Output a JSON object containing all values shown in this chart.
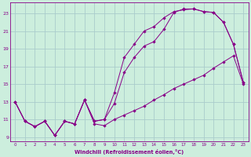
{
  "xlabel": "Windchill (Refroidissement éolien,°C)",
  "bg_color": "#cceedd",
  "grid_color": "#aacccc",
  "line_color": "#880088",
  "xlim": [
    -0.5,
    23.5
  ],
  "ylim": [
    8.5,
    24.2
  ],
  "xticks": [
    0,
    1,
    2,
    3,
    4,
    5,
    6,
    7,
    8,
    9,
    10,
    11,
    12,
    13,
    14,
    15,
    16,
    17,
    18,
    19,
    20,
    21,
    22,
    23
  ],
  "yticks": [
    9,
    11,
    13,
    15,
    17,
    19,
    21,
    23
  ],
  "line1_x": [
    0,
    1,
    2,
    3,
    4,
    5,
    6,
    7,
    8,
    9,
    10,
    11,
    12,
    13,
    14,
    15,
    16,
    17,
    18,
    19,
    20,
    21,
    22,
    23
  ],
  "line1_y": [
    13.0,
    10.8,
    10.2,
    10.8,
    9.2,
    10.8,
    10.5,
    13.2,
    10.5,
    10.3,
    11.0,
    11.5,
    12.0,
    12.5,
    13.2,
    13.8,
    14.5,
    15.0,
    15.5,
    16.0,
    16.8,
    17.5,
    18.2,
    15.0
  ],
  "line2_x": [
    0,
    1,
    2,
    3,
    4,
    5,
    6,
    7,
    8,
    9,
    10,
    11,
    12,
    13,
    14,
    15,
    16,
    17,
    18,
    19,
    20,
    21,
    22,
    23
  ],
  "line2_y": [
    13.0,
    10.8,
    10.2,
    10.8,
    9.2,
    10.8,
    10.5,
    13.2,
    10.8,
    11.0,
    12.8,
    16.3,
    18.0,
    19.3,
    19.8,
    21.2,
    23.1,
    23.5,
    23.5,
    23.2,
    23.1,
    22.0,
    19.5,
    15.2
  ],
  "line3_x": [
    0,
    1,
    2,
    3,
    4,
    5,
    6,
    7,
    8,
    9,
    10,
    11,
    12,
    13,
    14,
    15,
    16,
    17,
    18,
    19,
    20,
    21,
    22,
    23
  ],
  "line3_y": [
    13.0,
    10.8,
    10.2,
    10.8,
    9.2,
    10.8,
    10.5,
    13.2,
    10.8,
    11.0,
    14.0,
    18.0,
    19.5,
    21.0,
    21.5,
    22.5,
    23.2,
    23.4,
    23.5,
    23.2,
    23.1,
    22.0,
    19.5,
    15.2
  ]
}
